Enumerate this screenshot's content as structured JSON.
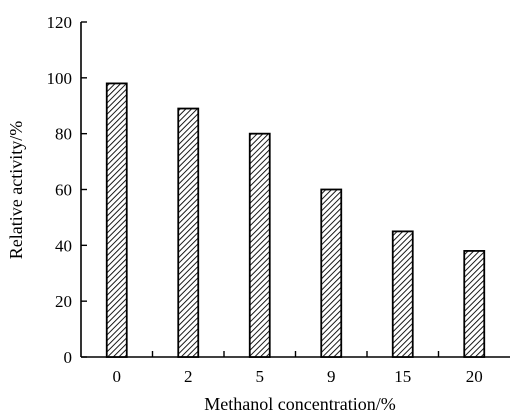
{
  "chart_data": {
    "type": "bar",
    "title": "",
    "xlabel": "Methanol concentration/%",
    "ylabel": "Relative activity/%",
    "categories": [
      "0",
      "2",
      "5",
      "9",
      "15",
      "20"
    ],
    "values": [
      98,
      89,
      80,
      60,
      45,
      38
    ],
    "ylim": [
      0,
      120
    ],
    "yticks": [
      "0",
      "20",
      "40",
      "60",
      "80",
      "100",
      "120"
    ],
    "grid": false,
    "legend": "none",
    "bar_fill": "diagonal-hatch",
    "colors": {
      "bar_stroke": "#000000",
      "hatch": "#000000",
      "background": "#ffffff"
    }
  }
}
